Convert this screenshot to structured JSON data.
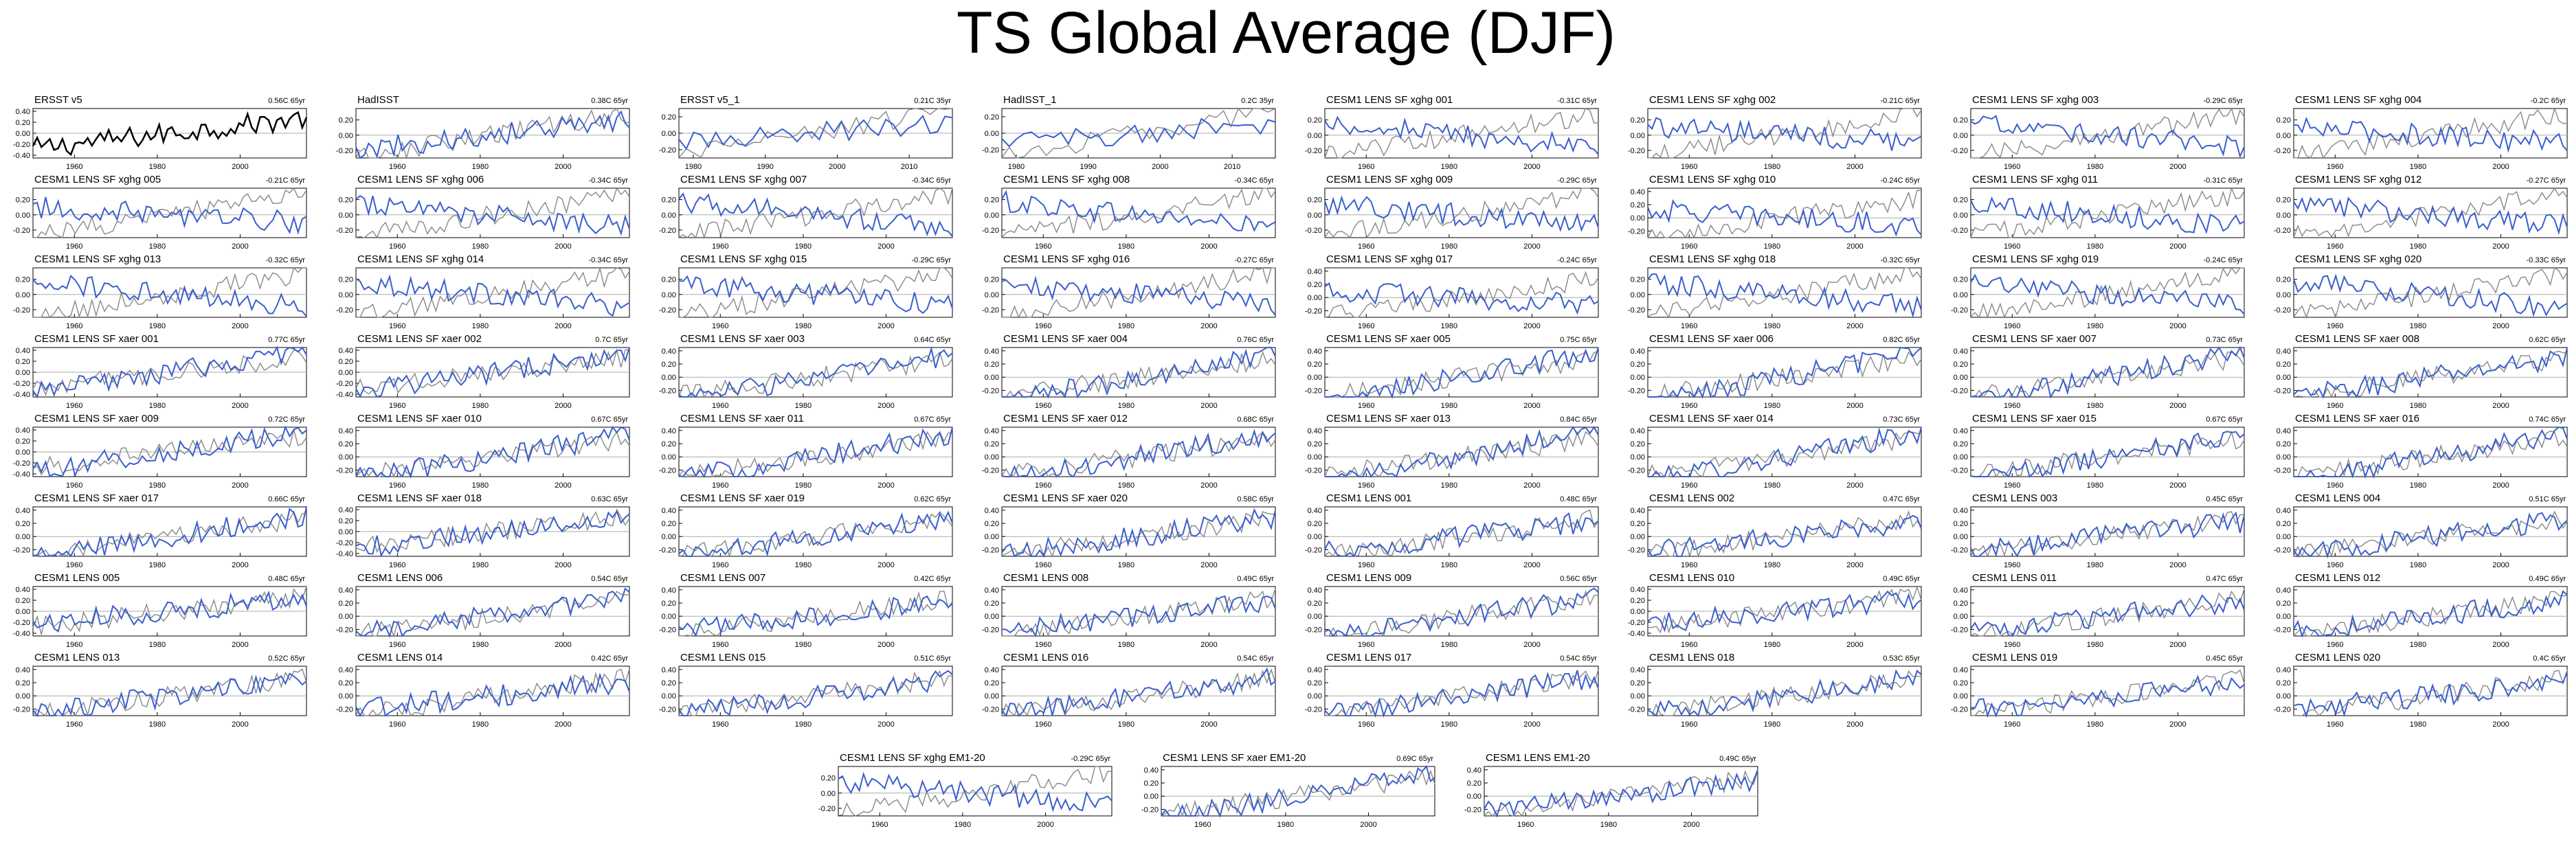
{
  "title": "TS Global Average (DJF)",
  "colors": {
    "observed": "#000000",
    "model": "#3a5fcd",
    "reference": "#888888",
    "zero_line": "#aaaaaa"
  },
  "chart_data": {
    "type": "line",
    "title": "TS Global Average (DJF)",
    "xlim": [
      1950,
      2016
    ],
    "x_ticks": [
      1960,
      1980,
      2000
    ],
    "x_ticks_alt": [
      1980,
      1990,
      2000,
      2010
    ],
    "panels": [
      {
        "name": "ERSST v5",
        "trend": "0.56C 65yr",
        "y_ticks": [
          "0.40",
          "0.20",
          "0.00",
          "-0.20",
          "-0.40"
        ],
        "ylim": [
          -0.45,
          0.45
        ],
        "kind": "obs"
      },
      {
        "name": "HadISST",
        "trend": "0.38C 65yr",
        "y_ticks": [
          "0.20",
          "0.00",
          "-0.20"
        ],
        "ylim": [
          -0.3,
          0.35
        ],
        "kind": "model"
      },
      {
        "name": "ERSST v5_1",
        "trend": "0.21C 35yr",
        "y_ticks": [
          "0.20",
          "0.00",
          "-0.20"
        ],
        "ylim": [
          -0.3,
          0.3
        ],
        "kind": "short"
      },
      {
        "name": "HadISST_1",
        "trend": "0.2C 35yr",
        "y_ticks": [
          "0.20",
          "0.00",
          "-0.20"
        ],
        "ylim": [
          -0.3,
          0.3
        ],
        "kind": "short"
      },
      {
        "name": "CESM1 LENS SF xghg 001",
        "trend": "-0.31C 65yr",
        "y_ticks": [
          "0.20",
          "0.00",
          "-0.20"
        ],
        "ylim": [
          -0.3,
          0.35
        ],
        "kind": "model"
      },
      {
        "name": "CESM1 LENS SF xghg 002",
        "trend": "-0.21C 65yr",
        "y_ticks": [
          "0.20",
          "0.00",
          "-0.20"
        ],
        "ylim": [
          -0.3,
          0.35
        ],
        "kind": "model"
      },
      {
        "name": "CESM1 LENS SF xghg 003",
        "trend": "-0.29C 65yr",
        "y_ticks": [
          "0.20",
          "0.00",
          "-0.20"
        ],
        "ylim": [
          -0.3,
          0.35
        ],
        "kind": "model"
      },
      {
        "name": "CESM1 LENS SF xghg 004",
        "trend": "-0.2C 65yr",
        "y_ticks": [
          "0.20",
          "0.00",
          "-0.20"
        ],
        "ylim": [
          -0.3,
          0.35
        ],
        "kind": "model"
      },
      {
        "name": "CESM1 LENS SF xghg 005",
        "trend": "-0.21C 65yr",
        "y_ticks": [
          "0.20",
          "0.00",
          "-0.20"
        ],
        "ylim": [
          -0.3,
          0.35
        ],
        "kind": "model"
      },
      {
        "name": "CESM1 LENS SF xghg 006",
        "trend": "-0.34C 65yr",
        "y_ticks": [
          "0.20",
          "0.00",
          "-0.20"
        ],
        "ylim": [
          -0.3,
          0.35
        ],
        "kind": "model"
      },
      {
        "name": "CESM1 LENS SF xghg 007",
        "trend": "-0.34C 65yr",
        "y_ticks": [
          "0.20",
          "0.00",
          "-0.20"
        ],
        "ylim": [
          -0.3,
          0.35
        ],
        "kind": "model"
      },
      {
        "name": "CESM1 LENS SF xghg 008",
        "trend": "-0.34C 65yr",
        "y_ticks": [
          "0.20",
          "0.00",
          "-0.20"
        ],
        "ylim": [
          -0.3,
          0.35
        ],
        "kind": "model"
      },
      {
        "name": "CESM1 LENS SF xghg 009",
        "trend": "-0.29C 65yr",
        "y_ticks": [
          "0.20",
          "0.00",
          "-0.20"
        ],
        "ylim": [
          -0.3,
          0.35
        ],
        "kind": "model"
      },
      {
        "name": "CESM1 LENS SF xghg 010",
        "trend": "-0.24C 65yr",
        "y_ticks": [
          "0.40",
          "0.20",
          "0.00",
          "-0.20"
        ],
        "ylim": [
          -0.3,
          0.45
        ],
        "kind": "model"
      },
      {
        "name": "CESM1 LENS SF xghg 011",
        "trend": "-0.31C 65yr",
        "y_ticks": [
          "0.20",
          "0.00",
          "-0.20"
        ],
        "ylim": [
          -0.3,
          0.35
        ],
        "kind": "model"
      },
      {
        "name": "CESM1 LENS SF xghg 012",
        "trend": "-0.27C 65yr",
        "y_ticks": [
          "0.20",
          "0.00",
          "-0.20"
        ],
        "ylim": [
          -0.3,
          0.35
        ],
        "kind": "model"
      },
      {
        "name": "CESM1 LENS SF xghg 013",
        "trend": "-0.32C 65yr",
        "y_ticks": [
          "0.20",
          "0.00",
          "-0.20"
        ],
        "ylim": [
          -0.3,
          0.35
        ],
        "kind": "model"
      },
      {
        "name": "CESM1 LENS SF xghg 014",
        "trend": "-0.34C 65yr",
        "y_ticks": [
          "0.20",
          "0.00",
          "-0.20"
        ],
        "ylim": [
          -0.3,
          0.35
        ],
        "kind": "model"
      },
      {
        "name": "CESM1 LENS SF xghg 015",
        "trend": "-0.29C 65yr",
        "y_ticks": [
          "0.20",
          "0.00",
          "-0.20"
        ],
        "ylim": [
          -0.3,
          0.35
        ],
        "kind": "model"
      },
      {
        "name": "CESM1 LENS SF xghg 016",
        "trend": "-0.27C 65yr",
        "y_ticks": [
          "0.20",
          "0.00",
          "-0.20"
        ],
        "ylim": [
          -0.3,
          0.35
        ],
        "kind": "model"
      },
      {
        "name": "CESM1 LENS SF xghg 017",
        "trend": "-0.24C 65yr",
        "y_ticks": [
          "0.40",
          "0.20",
          "0.00",
          "-0.20"
        ],
        "ylim": [
          -0.3,
          0.45
        ],
        "kind": "model"
      },
      {
        "name": "CESM1 LENS SF xghg 018",
        "trend": "-0.32C 65yr",
        "y_ticks": [
          "0.20",
          "0.00",
          "-0.20"
        ],
        "ylim": [
          -0.3,
          0.35
        ],
        "kind": "model"
      },
      {
        "name": "CESM1 LENS SF xghg 019",
        "trend": "-0.24C 65yr",
        "y_ticks": [
          "0.20",
          "0.00",
          "-0.20"
        ],
        "ylim": [
          -0.3,
          0.35
        ],
        "kind": "model"
      },
      {
        "name": "CESM1 LENS SF xghg 020",
        "trend": "-0.33C 65yr",
        "y_ticks": [
          "0.20",
          "0.00",
          "-0.20"
        ],
        "ylim": [
          -0.3,
          0.35
        ],
        "kind": "model"
      },
      {
        "name": "CESM1 LENS SF xaer 001",
        "trend": "0.77C 65yr",
        "y_ticks": [
          "0.40",
          "0.20",
          "0.00",
          "-0.20",
          "-0.40"
        ],
        "ylim": [
          -0.45,
          0.45
        ],
        "kind": "model"
      },
      {
        "name": "CESM1 LENS SF xaer 002",
        "trend": "0.7C 65yr",
        "y_ticks": [
          "0.40",
          "0.20",
          "0.00",
          "-0.20",
          "-0.40"
        ],
        "ylim": [
          -0.45,
          0.45
        ],
        "kind": "model"
      },
      {
        "name": "CESM1 LENS SF xaer 003",
        "trend": "0.64C 65yr",
        "y_ticks": [
          "0.40",
          "0.20",
          "0.00",
          "-0.20"
        ],
        "ylim": [
          -0.3,
          0.45
        ],
        "kind": "model"
      },
      {
        "name": "CESM1 LENS SF xaer 004",
        "trend": "0.76C 65yr",
        "y_ticks": [
          "0.40",
          "0.20",
          "0.00",
          "-0.20"
        ],
        "ylim": [
          -0.3,
          0.45
        ],
        "kind": "model"
      },
      {
        "name": "CESM1 LENS SF xaer 005",
        "trend": "0.75C 65yr",
        "y_ticks": [
          "0.40",
          "0.20",
          "0.00",
          "-0.20"
        ],
        "ylim": [
          -0.3,
          0.45
        ],
        "kind": "model"
      },
      {
        "name": "CESM1 LENS SF xaer 006",
        "trend": "0.82C 65yr",
        "y_ticks": [
          "0.40",
          "0.20",
          "0.00",
          "-0.20"
        ],
        "ylim": [
          -0.3,
          0.45
        ],
        "kind": "model"
      },
      {
        "name": "CESM1 LENS SF xaer 007",
        "trend": "0.73C 65yr",
        "y_ticks": [
          "0.40",
          "0.20",
          "0.00",
          "-0.20"
        ],
        "ylim": [
          -0.3,
          0.45
        ],
        "kind": "model"
      },
      {
        "name": "CESM1 LENS SF xaer 008",
        "trend": "0.62C 65yr",
        "y_ticks": [
          "0.40",
          "0.20",
          "0.00",
          "-0.20"
        ],
        "ylim": [
          -0.3,
          0.45
        ],
        "kind": "model"
      },
      {
        "name": "CESM1 LENS SF xaer 009",
        "trend": "0.72C 65yr",
        "y_ticks": [
          "0.40",
          "0.20",
          "0.00",
          "-0.20",
          "-0.40"
        ],
        "ylim": [
          -0.45,
          0.45
        ],
        "kind": "model"
      },
      {
        "name": "CESM1 LENS SF xaer 010",
        "trend": "0.67C 65yr",
        "y_ticks": [
          "0.40",
          "0.20",
          "0.00",
          "-0.20"
        ],
        "ylim": [
          -0.3,
          0.45
        ],
        "kind": "model"
      },
      {
        "name": "CESM1 LENS SF xaer 011",
        "trend": "0.67C 65yr",
        "y_ticks": [
          "0.40",
          "0.20",
          "0.00",
          "-0.20"
        ],
        "ylim": [
          -0.3,
          0.45
        ],
        "kind": "model"
      },
      {
        "name": "CESM1 LENS SF xaer 012",
        "trend": "0.68C 65yr",
        "y_ticks": [
          "0.40",
          "0.20",
          "0.00",
          "-0.20"
        ],
        "ylim": [
          -0.3,
          0.45
        ],
        "kind": "model"
      },
      {
        "name": "CESM1 LENS SF xaer 013",
        "trend": "0.84C 65yr",
        "y_ticks": [
          "0.40",
          "0.20",
          "0.00",
          "-0.20"
        ],
        "ylim": [
          -0.3,
          0.45
        ],
        "kind": "model"
      },
      {
        "name": "CESM1 LENS SF xaer 014",
        "trend": "0.73C 65yr",
        "y_ticks": [
          "0.40",
          "0.20",
          "0.00",
          "-0.20"
        ],
        "ylim": [
          -0.3,
          0.45
        ],
        "kind": "model"
      },
      {
        "name": "CESM1 LENS SF xaer 015",
        "trend": "0.67C 65yr",
        "y_ticks": [
          "0.40",
          "0.20",
          "0.00",
          "-0.20"
        ],
        "ylim": [
          -0.3,
          0.45
        ],
        "kind": "model"
      },
      {
        "name": "CESM1 LENS SF xaer 016",
        "trend": "0.74C 65yr",
        "y_ticks": [
          "0.40",
          "0.20",
          "0.00",
          "-0.20"
        ],
        "ylim": [
          -0.3,
          0.45
        ],
        "kind": "model"
      },
      {
        "name": "CESM1 LENS SF xaer 017",
        "trend": "0.66C 65yr",
        "y_ticks": [
          "0.40",
          "0.20",
          "0.00",
          "-0.20"
        ],
        "ylim": [
          -0.3,
          0.45
        ],
        "kind": "model"
      },
      {
        "name": "CESM1 LENS SF xaer 018",
        "trend": "0.63C 65yr",
        "y_ticks": [
          "0.40",
          "0.20",
          "0.00",
          "-0.20",
          "-0.40"
        ],
        "ylim": [
          -0.45,
          0.45
        ],
        "kind": "model"
      },
      {
        "name": "CESM1 LENS SF xaer 019",
        "trend": "0.62C 65yr",
        "y_ticks": [
          "0.40",
          "0.20",
          "0.00",
          "-0.20"
        ],
        "ylim": [
          -0.3,
          0.45
        ],
        "kind": "model"
      },
      {
        "name": "CESM1 LENS SF xaer 020",
        "trend": "0.58C 65yr",
        "y_ticks": [
          "0.40",
          "0.20",
          "0.00",
          "-0.20"
        ],
        "ylim": [
          -0.3,
          0.45
        ],
        "kind": "model"
      },
      {
        "name": "CESM1 LENS 001",
        "trend": "0.48C 65yr",
        "y_ticks": [
          "0.40",
          "0.20",
          "0.00",
          "-0.20"
        ],
        "ylim": [
          -0.3,
          0.45
        ],
        "kind": "model"
      },
      {
        "name": "CESM1 LENS 002",
        "trend": "0.47C 65yr",
        "y_ticks": [
          "0.40",
          "0.20",
          "0.00",
          "-0.20"
        ],
        "ylim": [
          -0.3,
          0.45
        ],
        "kind": "model"
      },
      {
        "name": "CESM1 LENS 003",
        "trend": "0.45C 65yr",
        "y_ticks": [
          "0.40",
          "0.20",
          "0.00",
          "-0.20"
        ],
        "ylim": [
          -0.3,
          0.45
        ],
        "kind": "model"
      },
      {
        "name": "CESM1 LENS 004",
        "trend": "0.51C 65yr",
        "y_ticks": [
          "0.40",
          "0.20",
          "0.00",
          "-0.20"
        ],
        "ylim": [
          -0.3,
          0.45
        ],
        "kind": "model"
      },
      {
        "name": "CESM1 LENS 005",
        "trend": "0.48C 65yr",
        "y_ticks": [
          "0.40",
          "0.20",
          "0.00",
          "-0.20",
          "-0.40"
        ],
        "ylim": [
          -0.45,
          0.45
        ],
        "kind": "model"
      },
      {
        "name": "CESM1 LENS 006",
        "trend": "0.54C 65yr",
        "y_ticks": [
          "0.40",
          "0.20",
          "0.00",
          "-0.20"
        ],
        "ylim": [
          -0.3,
          0.45
        ],
        "kind": "model"
      },
      {
        "name": "CESM1 LENS 007",
        "trend": "0.42C 65yr",
        "y_ticks": [
          "0.40",
          "0.20",
          "0.00",
          "-0.20"
        ],
        "ylim": [
          -0.3,
          0.45
        ],
        "kind": "model"
      },
      {
        "name": "CESM1 LENS 008",
        "trend": "0.49C 65yr",
        "y_ticks": [
          "0.40",
          "0.20",
          "0.00",
          "-0.20"
        ],
        "ylim": [
          -0.3,
          0.45
        ],
        "kind": "model"
      },
      {
        "name": "CESM1 LENS 009",
        "trend": "0.56C 65yr",
        "y_ticks": [
          "0.40",
          "0.20",
          "0.00",
          "-0.20"
        ],
        "ylim": [
          -0.3,
          0.45
        ],
        "kind": "model"
      },
      {
        "name": "CESM1 LENS 010",
        "trend": "0.49C 65yr",
        "y_ticks": [
          "0.40",
          "0.20",
          "0.00",
          "-0.20",
          "-0.40"
        ],
        "ylim": [
          -0.45,
          0.45
        ],
        "kind": "model"
      },
      {
        "name": "CESM1 LENS 011",
        "trend": "0.47C 65yr",
        "y_ticks": [
          "0.40",
          "0.20",
          "0.00",
          "-0.20"
        ],
        "ylim": [
          -0.3,
          0.45
        ],
        "kind": "model"
      },
      {
        "name": "CESM1 LENS 012",
        "trend": "0.49C 65yr",
        "y_ticks": [
          "0.40",
          "0.20",
          "0.00",
          "-0.20"
        ],
        "ylim": [
          -0.3,
          0.45
        ],
        "kind": "model"
      },
      {
        "name": "CESM1 LENS 013",
        "trend": "0.52C 65yr",
        "y_ticks": [
          "0.40",
          "0.20",
          "0.00",
          "-0.20"
        ],
        "ylim": [
          -0.3,
          0.45
        ],
        "kind": "model"
      },
      {
        "name": "CESM1 LENS 014",
        "trend": "0.42C 65yr",
        "y_ticks": [
          "0.40",
          "0.20",
          "0.00",
          "-0.20"
        ],
        "ylim": [
          -0.3,
          0.45
        ],
        "kind": "model"
      },
      {
        "name": "CESM1 LENS 015",
        "trend": "0.51C 65yr",
        "y_ticks": [
          "0.40",
          "0.20",
          "0.00",
          "-0.20"
        ],
        "ylim": [
          -0.3,
          0.45
        ],
        "kind": "model"
      },
      {
        "name": "CESM1 LENS 016",
        "trend": "0.54C 65yr",
        "y_ticks": [
          "0.40",
          "0.20",
          "0.00",
          "-0.20"
        ],
        "ylim": [
          -0.3,
          0.45
        ],
        "kind": "model"
      },
      {
        "name": "CESM1 LENS 017",
        "trend": "0.54C 65yr",
        "y_ticks": [
          "0.40",
          "0.20",
          "0.00",
          "-0.20"
        ],
        "ylim": [
          -0.3,
          0.45
        ],
        "kind": "model"
      },
      {
        "name": "CESM1 LENS 018",
        "trend": "0.53C 65yr",
        "y_ticks": [
          "0.40",
          "0.20",
          "0.00",
          "-0.20"
        ],
        "ylim": [
          -0.3,
          0.45
        ],
        "kind": "model"
      },
      {
        "name": "CESM1 LENS 019",
        "trend": "0.45C 65yr",
        "y_ticks": [
          "0.40",
          "0.20",
          "0.00",
          "-0.20"
        ],
        "ylim": [
          -0.3,
          0.45
        ],
        "kind": "model"
      },
      {
        "name": "CESM1 LENS 020",
        "trend": "0.4C 65yr",
        "y_ticks": [
          "0.40",
          "0.20",
          "0.00",
          "-0.20"
        ],
        "ylim": [
          -0.3,
          0.45
        ],
        "kind": "model"
      },
      {
        "name": "CESM1 LENS SF xghg EM1-20",
        "trend": "-0.29C 65yr",
        "y_ticks": [
          "0.20",
          "0.00",
          "-0.20"
        ],
        "ylim": [
          -0.3,
          0.35
        ],
        "kind": "model"
      },
      {
        "name": "CESM1 LENS SF xaer EM1-20",
        "trend": "0.69C 65yr",
        "y_ticks": [
          "0.40",
          "0.20",
          "0.00",
          "-0.20"
        ],
        "ylim": [
          -0.3,
          0.45
        ],
        "kind": "model"
      },
      {
        "name": "CESM1 LENS EM1-20",
        "trend": "0.49C 65yr",
        "y_ticks": [
          "0.40",
          "0.20",
          "0.00",
          "-0.20"
        ],
        "ylim": [
          -0.3,
          0.45
        ],
        "kind": "model"
      }
    ]
  }
}
